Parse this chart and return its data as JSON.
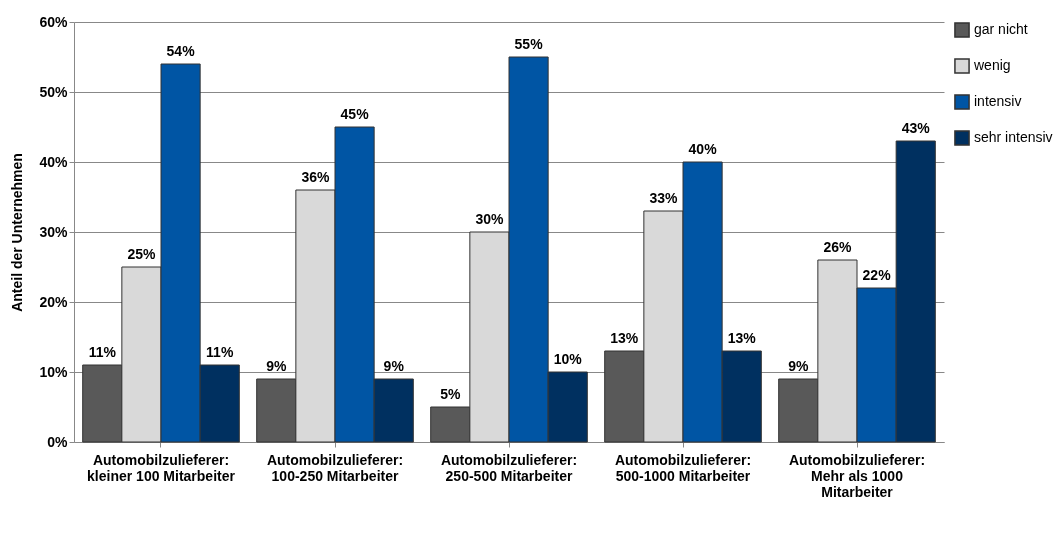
{
  "chart_data": {
    "type": "bar",
    "ylabel": "Anteil der Unternehmen",
    "categories": [
      "Automobilzulieferer: kleiner 100 Mitarbeiter",
      "Automobilzulieferer: 100-250 Mitarbeiter",
      "Automobilzulieferer: 250-500 Mitarbeiter",
      "Automobilzulieferer: 500-1000 Mitarbeiter",
      "Automobilzulieferer: Mehr als 1000 Mitarbeiter"
    ],
    "series": [
      {
        "name": "gar nicht",
        "color": "#595959",
        "values": [
          11,
          9,
          5,
          13,
          9
        ],
        "value_labels": [
          "11%",
          "9%",
          "5%",
          "13%",
          "9%"
        ]
      },
      {
        "name": "wenig",
        "color": "#d9d9d9",
        "values": [
          25,
          36,
          30,
          33,
          26
        ],
        "value_labels": [
          "25%",
          "36%",
          "30%",
          "33%",
          "26%"
        ]
      },
      {
        "name": "intensiv",
        "color": "#0055a4",
        "values": [
          54,
          45,
          55,
          40,
          22
        ],
        "value_labels": [
          "54%",
          "45%",
          "55%",
          "40%",
          "22%"
        ]
      },
      {
        "name": "sehr intensiv",
        "color": "#003060",
        "values": [
          11,
          9,
          10,
          13,
          43
        ],
        "value_labels": [
          "11%",
          "9%",
          "10%",
          "13%",
          "43%"
        ]
      }
    ],
    "ylim": [
      0,
      60
    ],
    "yticks": [
      {
        "value": 0,
        "label": "0%"
      },
      {
        "value": 10,
        "label": "10%"
      },
      {
        "value": 20,
        "label": "20%"
      },
      {
        "value": 30,
        "label": "30%"
      },
      {
        "value": 40,
        "label": "40%"
      },
      {
        "value": 50,
        "label": "50%"
      },
      {
        "value": 60,
        "label": "60%"
      }
    ],
    "grid": "y",
    "legend": "top right"
  }
}
